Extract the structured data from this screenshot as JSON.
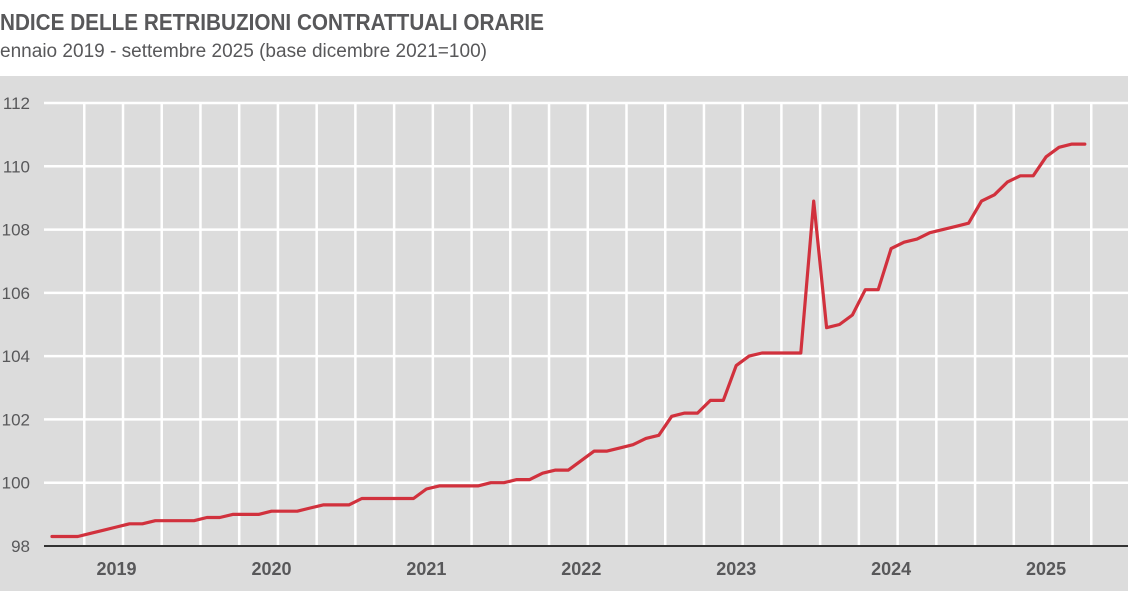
{
  "chart_data": {
    "type": "line",
    "title": "NDICE DELLE RETRIBUZIONI CONTRATTUALI ORARIE",
    "subtitle": "ennaio 2019 - settembre 2025 (base dicembre 2021=100)",
    "xlabel": "",
    "ylabel": "",
    "ylim": [
      98,
      112
    ],
    "yticks": [
      "98",
      "100",
      "102",
      "104",
      "106",
      "108",
      "110",
      "112"
    ],
    "xticks": [
      "2019",
      "2020",
      "2021",
      "2022",
      "2023",
      "2024",
      "2025"
    ],
    "x_start": "2019-01",
    "x_end": "2025-09",
    "x_frequency": "monthly",
    "grid": true,
    "background_color": "#dcdcdc",
    "grid_color": "#ffffff",
    "line_color": "#d1313d",
    "series": [
      {
        "values": [
          98.3,
          98.3,
          98.3,
          98.4,
          98.5,
          98.6,
          98.7,
          98.7,
          98.8,
          98.8,
          98.8,
          98.8,
          98.9,
          98.9,
          99.0,
          99.0,
          99.0,
          99.1,
          99.1,
          99.1,
          99.2,
          99.3,
          99.3,
          99.3,
          99.5,
          99.5,
          99.5,
          99.5,
          99.5,
          99.8,
          99.9,
          99.9,
          99.9,
          99.9,
          100.0,
          100.0,
          100.1,
          100.1,
          100.3,
          100.4,
          100.4,
          100.7,
          101.0,
          101.0,
          101.1,
          101.2,
          101.4,
          101.5,
          102.1,
          102.2,
          102.2,
          102.6,
          102.6,
          103.7,
          104.0,
          104.1,
          104.1,
          104.1,
          104.1,
          108.9,
          104.9,
          105.0,
          105.3,
          106.1,
          106.1,
          107.4,
          107.6,
          107.7,
          107.9,
          108.0,
          108.1,
          108.2,
          108.9,
          109.1,
          109.5,
          109.7,
          109.7,
          110.3,
          110.6,
          110.7,
          110.7
        ]
      }
    ]
  }
}
